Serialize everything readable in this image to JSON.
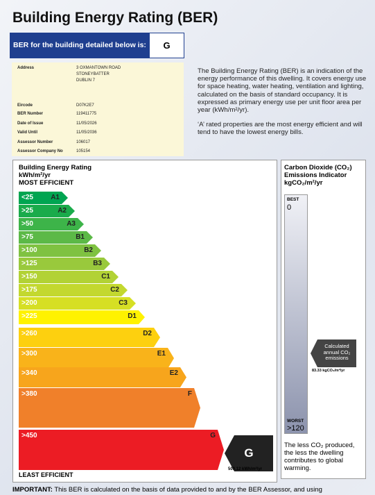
{
  "header": {
    "title": "Building Energy Rating (BER)"
  },
  "ber_banner": {
    "label": "BER for the building detailed below is:",
    "rating": "G"
  },
  "details": {
    "address": {
      "label": "Address",
      "lines": [
        "3 OXMANTOWN ROAD",
        "STONEYBATTER",
        "DUBLIN 7"
      ]
    },
    "rows": [
      {
        "label": "Eircode",
        "value": "D07K2E7"
      },
      {
        "label": "BER Number",
        "value": "119411775"
      },
      {
        "label": "Date of Issue",
        "value": "11/05/2026"
      },
      {
        "label": "Valid Until",
        "value": "11/05/2036"
      },
      {
        "label": "Assessor Number",
        "value": "106017"
      },
      {
        "label": "Assessor Company No",
        "value": "105154"
      }
    ]
  },
  "description": [
    "The Building Energy Rating (BER) is an indication of the energy performance of this dwelling.  It covers energy use for space heating, water heating, ventilation and lighting, calculated on the basis of standard occupancy. It is expressed as primary energy use per unit floor area per year (kWh/m²/yr).",
    "‘A’ rated properties are the most energy efficient and will tend to have the lowest energy bills."
  ],
  "energy_scale": {
    "title": "Building Energy Rating",
    "unit": "kWh/m²/yr",
    "top_label": "MOST EFFICIENT",
    "bottom_label": "LEAST EFFICIENT",
    "bands": [
      {
        "threshold": "<25",
        "rating": "A1",
        "color": "#00a551"
      },
      {
        "threshold": ">25",
        "rating": "A2",
        "color": "#1aab4b"
      },
      {
        "threshold": ">50",
        "rating": "A3",
        "color": "#3db449"
      },
      {
        "threshold": ">75",
        "rating": "B1",
        "color": "#5cb947"
      },
      {
        "threshold": ">100",
        "rating": "B2",
        "color": "#7fc241"
      },
      {
        "threshold": ">125",
        "rating": "B3",
        "color": "#99c93c"
      },
      {
        "threshold": ">150",
        "rating": "C1",
        "color": "#b2d235"
      },
      {
        "threshold": ">175",
        "rating": "C2",
        "color": "#c3d82f"
      },
      {
        "threshold": ">200",
        "rating": "C3",
        "color": "#d6df24"
      },
      {
        "threshold": ">225",
        "rating": "D1",
        "color": "#fff200"
      },
      {
        "threshold": ">260",
        "rating": "D2",
        "color": "#fdd00f"
      },
      {
        "threshold": ">300",
        "rating": "E1",
        "color": "#f9b31a"
      },
      {
        "threshold": ">340",
        "rating": "E2",
        "color": "#f7a51c"
      },
      {
        "threshold": ">380",
        "rating": "F",
        "color": "#f0802a"
      },
      {
        "threshold": ">450",
        "rating": "G",
        "color": "#ec1c24"
      }
    ],
    "result": {
      "rating": "G",
      "value": "509.12 kWh/m²/yr"
    }
  },
  "co2": {
    "title": "Carbon Dioxide (CO₂) Emissions Indicator",
    "unit": "kgCO₂/m²/yr",
    "best_label": "BEST",
    "best_value": "0",
    "worst_label": "WORST",
    "worst_value": ">120",
    "marker_label": "Calculated annual CO₂ emissions",
    "result": "83.33 kgCO₂/m²/yr",
    "note": "The less CO₂ produced, the less the dwelling contributes to global warming."
  },
  "footer": {
    "important": "IMPORTANT:",
    "text": "This BER is calculated on the basis of data provided to and by the BER Assessor, and using"
  }
}
